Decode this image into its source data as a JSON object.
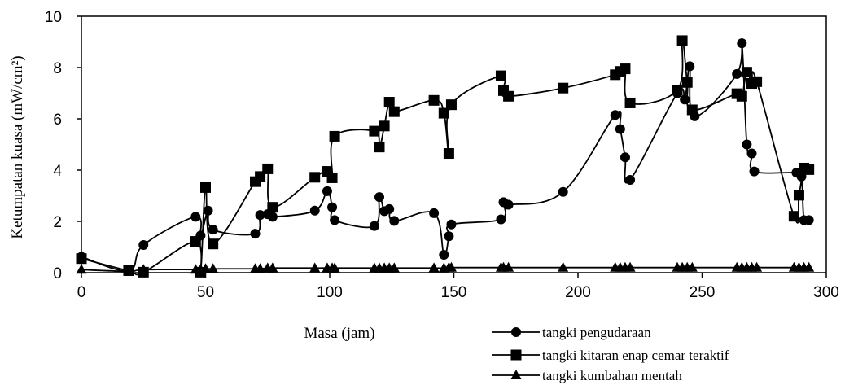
{
  "chart_data": {
    "type": "line",
    "xlabel": "Masa (jam)",
    "ylabel": "Ketumpatan kuasa (mW/cm²)",
    "xlim": [
      0,
      300
    ],
    "ylim": [
      0,
      10
    ],
    "x_ticks": [
      "0",
      "50",
      "100",
      "150",
      "200",
      "250",
      "300"
    ],
    "y_ticks": [
      "0",
      "2",
      "4",
      "6",
      "8",
      "10"
    ],
    "grid": false,
    "legend_position": "bottom-right",
    "series": [
      {
        "name": "tangki pengudaraan",
        "marker": "circle",
        "x": [
          0,
          19,
          25,
          46,
          48,
          51,
          53,
          70,
          72,
          75,
          77,
          94,
          99,
          101,
          102,
          118,
          120,
          122,
          124,
          126,
          142,
          146,
          148,
          149,
          169,
          170,
          172,
          194,
          215,
          217,
          219,
          221,
          240,
          243,
          245,
          247,
          264,
          266,
          268,
          270,
          271,
          288,
          290,
          291,
          293
        ],
        "y": [
          0.62,
          0.08,
          1.08,
          2.18,
          1.45,
          2.42,
          1.68,
          1.52,
          2.25,
          2.28,
          2.18,
          2.42,
          3.18,
          2.55,
          2.05,
          1.82,
          2.95,
          2.4,
          2.48,
          2.02,
          2.32,
          0.7,
          1.42,
          1.88,
          2.08,
          2.75,
          2.65,
          3.15,
          6.15,
          5.6,
          4.5,
          3.62,
          7.0,
          6.75,
          8.05,
          6.1,
          7.75,
          8.95,
          5.0,
          4.65,
          3.95,
          3.9,
          3.75,
          2.05,
          2.05
        ]
      },
      {
        "name": "tangki kitaran enap cemar teraktif",
        "marker": "square",
        "x": [
          0,
          19,
          25,
          46,
          48,
          50,
          53,
          70,
          72,
          75,
          77,
          94,
          99,
          101,
          102,
          118,
          120,
          122,
          124,
          126,
          142,
          146,
          148,
          149,
          169,
          170,
          172,
          194,
          215,
          217,
          219,
          221,
          240,
          242,
          244,
          246,
          264,
          266,
          268,
          270,
          272,
          287,
          289,
          291,
          293
        ],
        "y": [
          0.55,
          0.08,
          0.02,
          1.22,
          0.02,
          3.32,
          1.12,
          3.55,
          3.75,
          4.05,
          2.55,
          3.72,
          3.95,
          3.7,
          5.32,
          5.52,
          4.9,
          5.72,
          6.65,
          6.28,
          6.72,
          6.22,
          4.65,
          6.55,
          7.68,
          7.1,
          6.88,
          7.2,
          7.72,
          7.85,
          7.95,
          6.62,
          7.12,
          9.05,
          7.42,
          6.35,
          6.98,
          6.88,
          7.82,
          7.38,
          7.45,
          2.2,
          3.02,
          4.08,
          4.02
        ]
      },
      {
        "name": "tangki kumbahan mentah",
        "marker": "triangle",
        "x": [
          0,
          19,
          25,
          46,
          48,
          50,
          53,
          70,
          72,
          75,
          77,
          94,
          99,
          101,
          102,
          118,
          120,
          122,
          124,
          126,
          142,
          146,
          148,
          149,
          169,
          170,
          172,
          194,
          215,
          217,
          219,
          221,
          240,
          242,
          244,
          246,
          264,
          266,
          268,
          270,
          272,
          287,
          289,
          291,
          293
        ],
        "y": [
          0.12,
          0.05,
          0.12,
          0.12,
          0.12,
          0.15,
          0.15,
          0.15,
          0.15,
          0.18,
          0.18,
          0.18,
          0.18,
          0.18,
          0.18,
          0.18,
          0.18,
          0.18,
          0.18,
          0.18,
          0.18,
          0.18,
          0.2,
          0.2,
          0.2,
          0.2,
          0.2,
          0.2,
          0.2,
          0.2,
          0.2,
          0.2,
          0.2,
          0.2,
          0.2,
          0.2,
          0.2,
          0.2,
          0.2,
          0.2,
          0.2,
          0.2,
          0.2,
          0.2,
          0.2
        ]
      }
    ]
  }
}
